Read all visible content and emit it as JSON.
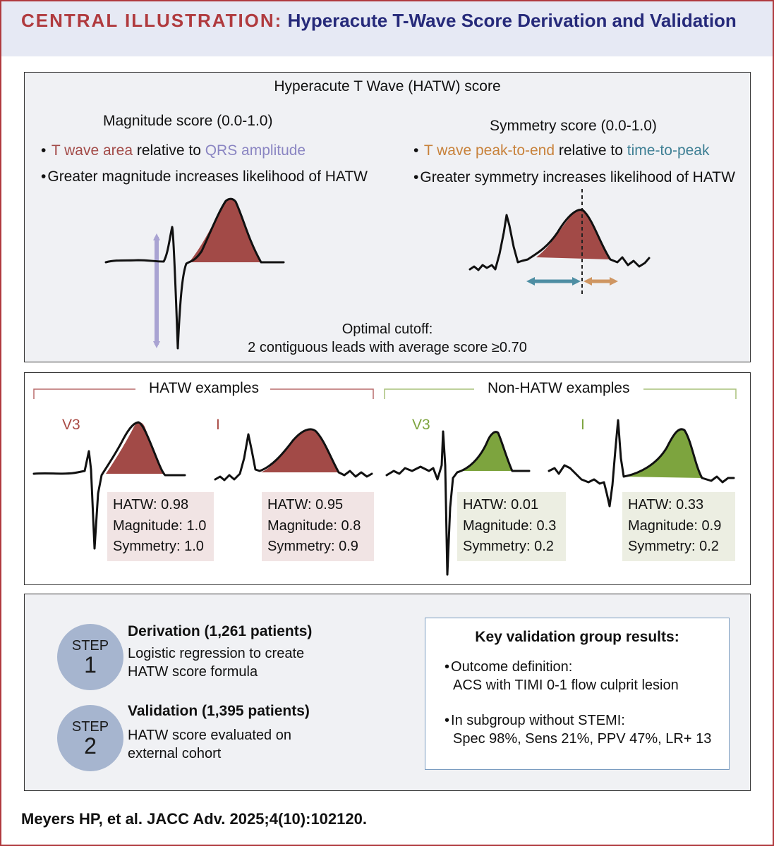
{
  "header": {
    "prefix": "CENTRAL ILLUSTRATION:",
    "title": "Hyperacute T-Wave Score Derivation and Validation"
  },
  "score_panel": {
    "title": "Hyperacute T Wave (HATW) score",
    "magnitude": {
      "heading": "Magnitude score (0.0-1.0)",
      "b1_part1": "T wave area",
      "b1_part2": " relative to ",
      "b1_part3": "QRS amplitude",
      "b2": "Greater magnitude increases likelihood of HATW"
    },
    "symmetry": {
      "heading": "Symmetry score (0.0-1.0)",
      "b1_part1": "T wave peak-to-end",
      "b1_part2": " relative to ",
      "b1_part3": "time-to-peak",
      "b2": "Greater symmetry  increases likelihood of HATW"
    },
    "cutoff_line1": "Optimal cutoff:",
    "cutoff_line2": "2 contiguous leads with average score ≥0.70"
  },
  "examples_panel": {
    "hatw_label": "HATW examples",
    "non_hatw_label": "Non-HATW examples",
    "examples": [
      {
        "lead": "V3",
        "hatw": "HATW: 0.98",
        "magnitude": "Magnitude: 1.0",
        "symmetry": "Symmetry: 1.0"
      },
      {
        "lead": "I",
        "hatw": "HATW: 0.95",
        "magnitude": "Magnitude: 0.8",
        "symmetry": "Symmetry: 0.9"
      },
      {
        "lead": "V3",
        "hatw": "HATW: 0.01",
        "magnitude": "Magnitude: 0.3",
        "symmetry": "Symmetry: 0.2"
      },
      {
        "lead": "I",
        "hatw": "HATW: 0.33",
        "magnitude": "Magnitude: 0.9",
        "symmetry": "Symmetry: 0.2"
      }
    ]
  },
  "steps_panel": {
    "steps": [
      {
        "step_word": "STEP",
        "number": "1",
        "title": "Derivation (1,261 patients)",
        "line1": "Logistic regression to create",
        "line2": "HATW score formula"
      },
      {
        "step_word": "STEP",
        "number": "2",
        "title": "Validation (1,395 patients)",
        "line1": "HATW score evaluated on",
        "line2": "external cohort"
      }
    ],
    "results": {
      "title": "Key validation group results:",
      "b1_line1": "Outcome definition:",
      "b1_line2": "ACS with TIMI 0-1 flow culprit lesion",
      "b2_line1": "In subgroup without STEMI:",
      "b2_line2": "Spec 98%, Sens 21%, PPV 47%, LR+ 13"
    }
  },
  "citation": "Meyers HP, et al. JACC Adv. 2025;4(10):102120.",
  "colors": {
    "brand_red": "#b03a3e",
    "navy": "#262a7a",
    "hatw_fill": "#a24a47",
    "non_hatw_fill": "#7da43e",
    "lavender": "#a9a3d2",
    "teal": "#4e8ea3",
    "orange": "#cf9662",
    "step_circle": "#a6b5cf"
  }
}
